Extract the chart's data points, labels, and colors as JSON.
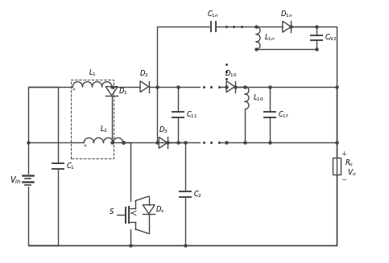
{
  "fig_width": 4.83,
  "fig_height": 3.27,
  "dpi": 100,
  "line_color": "#444444",
  "line_width": 1.0,
  "background": "#ffffff",
  "labels": {
    "Vin": "$V_{in}$",
    "L1": "$L_1$",
    "L2": "$L_2$",
    "D1": "$D_1$",
    "D2": "$D_2$",
    "D3": "$D_3$",
    "Ds": "$D_s$",
    "S": "$S$",
    "C1": "$C_1$",
    "C2": "$C_2$",
    "C11": "$C_{11}$",
    "C1n": "$C_{1n}$",
    "C1f": "$C_{1f}$",
    "D10": "$D_{10}$",
    "D1n": "$D_{1n}$",
    "L10": "$L_{10}$",
    "L1n": "$L_{1n}$",
    "C1t": "$C_{N2}$",
    "Ro": "$R_o$",
    "Vo": "$V_o$"
  }
}
